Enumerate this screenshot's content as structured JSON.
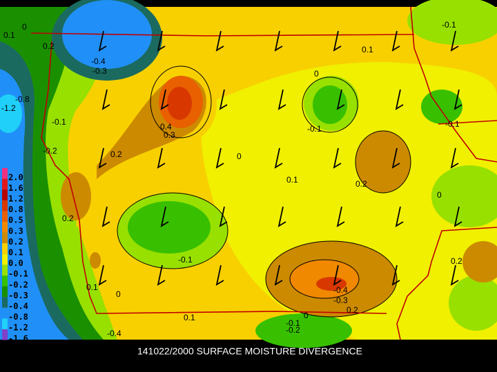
{
  "title": "141022/2000 SURFACE MOISTURE DIVERGENCE",
  "legend": [
    {
      "label": "2.0",
      "color": "#f03080"
    },
    {
      "label": "1.6",
      "color": "#e01818"
    },
    {
      "label": "1.2",
      "color": "#b80000"
    },
    {
      "label": "0.8",
      "color": "#d83800"
    },
    {
      "label": "0.5",
      "color": "#e86000"
    },
    {
      "label": "0.3",
      "color": "#f08800"
    },
    {
      "label": "0.2",
      "color": "#cc8a00"
    },
    {
      "label": "0.1",
      "color": "#f8d000"
    },
    {
      "label": "0.0",
      "color": "#f0f000"
    },
    {
      "label": "-0.1",
      "color": "#98e000"
    },
    {
      "label": "-0.2",
      "color": "#38c000"
    },
    {
      "label": "-0.3",
      "color": "#1a9000"
    },
    {
      "label": "-0.4",
      "color": "#1a6a60"
    },
    {
      "label": "-0.8",
      "color": "#2090f8"
    },
    {
      "label": "-1.2",
      "color": "#20d0f8"
    },
    {
      "label": "-1.6",
      "color": "#8040c8"
    }
  ],
  "contour_labels": [
    "0.1",
    "0",
    "0.2",
    "-0.4",
    "-0.3",
    "-0.8",
    "-1.2",
    "-0.1",
    "-0.2",
    "0.4",
    "0.3",
    "0.2",
    "0",
    "0.1",
    "0.2",
    "-0.1",
    "0",
    "0.1",
    "-0.1",
    "-0.1",
    "0",
    "0.2",
    "-0.1",
    "0.2",
    "0.1",
    "0",
    "-0.4",
    "-0.3",
    "0.2",
    "0.1",
    "-0.1",
    "-0.2",
    "0",
    "-0.4"
  ]
}
